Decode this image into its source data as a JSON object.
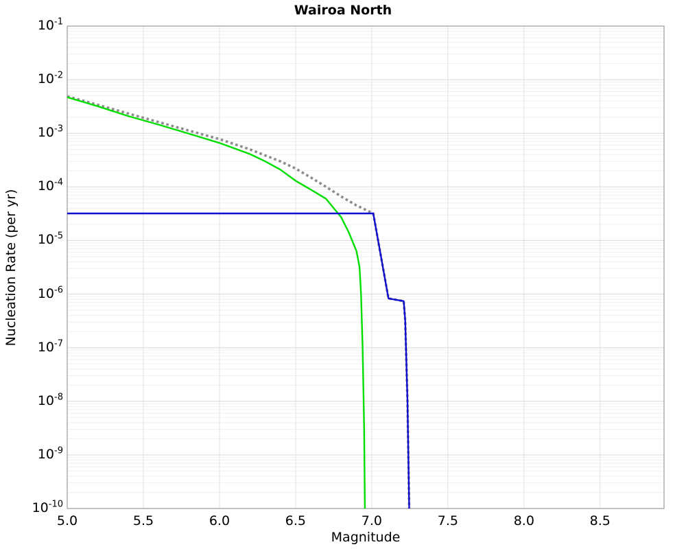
{
  "chart_data": {
    "type": "line",
    "title": "Wairoa North",
    "xlabel": "Magnitude",
    "ylabel": "Nucleation Rate (per yr)",
    "xlim": [
      5.0,
      8.92
    ],
    "ylim": [
      1e-10,
      0.1
    ],
    "x_ticks": [
      5.0,
      5.5,
      6.0,
      6.5,
      7.0,
      7.5,
      8.0,
      8.5
    ],
    "y_tick_exponents": [
      -1,
      -2,
      -3,
      -4,
      -5,
      -6,
      -7,
      -8,
      -9,
      -10
    ],
    "grid": {
      "major": true,
      "minor_log_horizontal": true,
      "vertical_major": true,
      "legend": "none"
    },
    "colors": {
      "green_series": "#00dd00",
      "blue_series": "#0f0fd0",
      "gray_dotted_series": "#8c8c8c",
      "grid_major": "#d9d9d9",
      "grid_minor": "#efefef",
      "grid_vertical": "#e2e2e2",
      "frame": "#9a9a9a",
      "text": "#000000"
    },
    "series": [
      {
        "name": "gray-dotted-total-mfd",
        "style": "dotted",
        "width": 3.6,
        "color_key": "gray_dotted_series",
        "points": [
          [
            5.0,
            0.0049
          ],
          [
            5.2,
            0.0034
          ],
          [
            5.4,
            0.00234
          ],
          [
            5.6,
            0.00162
          ],
          [
            5.8,
            0.00112
          ],
          [
            6.0,
            0.00078
          ],
          [
            6.2,
            0.0005
          ],
          [
            6.4,
            0.0003
          ],
          [
            6.5,
            0.00022
          ],
          [
            6.6,
            0.00015
          ],
          [
            6.7,
            0.0001
          ],
          [
            6.8,
            6.6e-05
          ],
          [
            6.9,
            4.5e-05
          ],
          [
            7.0,
            3.3e-05
          ],
          [
            7.01,
            3.2e-05
          ],
          [
            7.11,
            8.3e-07
          ],
          [
            7.21,
            7.4e-07
          ],
          [
            7.22,
            3.2e-07
          ],
          [
            7.235,
            1e-08
          ],
          [
            7.246,
            1e-10
          ]
        ]
      },
      {
        "name": "green-solid-mfd",
        "style": "solid",
        "width": 2.4,
        "color_key": "green_series",
        "points": [
          [
            5.0,
            0.0047
          ],
          [
            5.2,
            0.0032
          ],
          [
            5.4,
            0.0021
          ],
          [
            5.6,
            0.00145
          ],
          [
            5.8,
            0.00098
          ],
          [
            6.0,
            0.00066
          ],
          [
            6.1,
            0.00052
          ],
          [
            6.2,
            0.00041
          ],
          [
            6.3,
            0.0003
          ],
          [
            6.4,
            0.00021
          ],
          [
            6.5,
            0.00013
          ],
          [
            6.6,
            8.9e-05
          ],
          [
            6.7,
            6e-05
          ],
          [
            6.8,
            2.7e-05
          ],
          [
            6.85,
            1.4e-05
          ],
          [
            6.9,
            6.3e-06
          ],
          [
            6.92,
            3.2e-06
          ],
          [
            6.93,
            1e-06
          ],
          [
            6.94,
            1e-07
          ],
          [
            6.95,
            3.2e-09
          ],
          [
            6.955,
            1e-10
          ]
        ]
      },
      {
        "name": "blue-solid-mfd",
        "style": "solid",
        "width": 2.4,
        "color_key": "blue_series",
        "points": [
          [
            5.0,
            3.2e-05
          ],
          [
            7.01,
            3.2e-05
          ],
          [
            7.11,
            8.3e-07
          ],
          [
            7.21,
            7.4e-07
          ],
          [
            7.22,
            3.2e-07
          ],
          [
            7.235,
            1e-08
          ],
          [
            7.246,
            1e-10
          ]
        ]
      }
    ]
  }
}
